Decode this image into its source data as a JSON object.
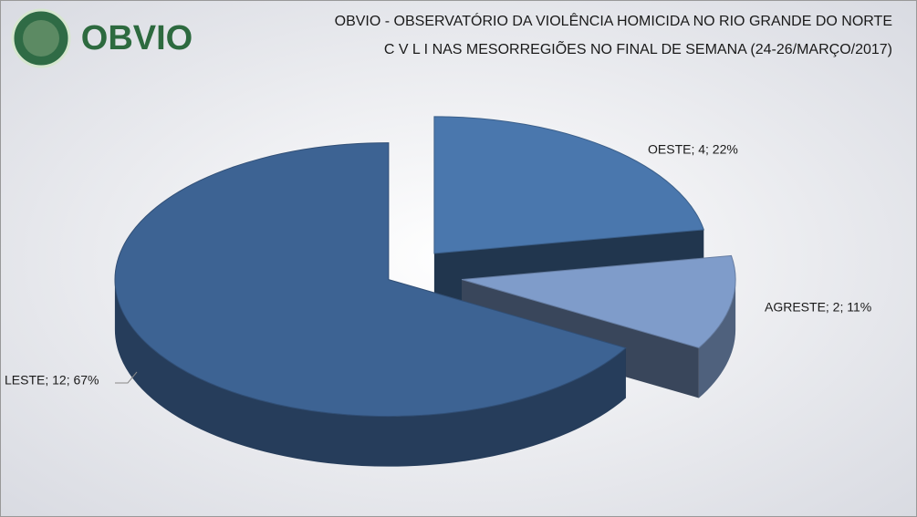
{
  "logo_text": "OBVIO",
  "chart_data": {
    "type": "pie",
    "title": "OBVIO - OBSERVATÓRIO DA VIOLÊNCIA HOMICIDA NO RIO GRANDE DO NORTE",
    "subtitle": "C V L I  NAS MESORREGIÕES NO FINAL DE SEMANA (24-26/MARÇO/2017)",
    "categories": [
      "OESTE",
      "AGRESTE",
      "LESTE"
    ],
    "values": [
      4,
      2,
      12
    ],
    "value_labels": [
      "OESTE; 4; 22%",
      "AGRESTE; 2; 11%",
      "LESTE; 12; 67%"
    ],
    "colors": [
      "#4a77ad",
      "#7f9cca",
      "#3d6393"
    ]
  }
}
